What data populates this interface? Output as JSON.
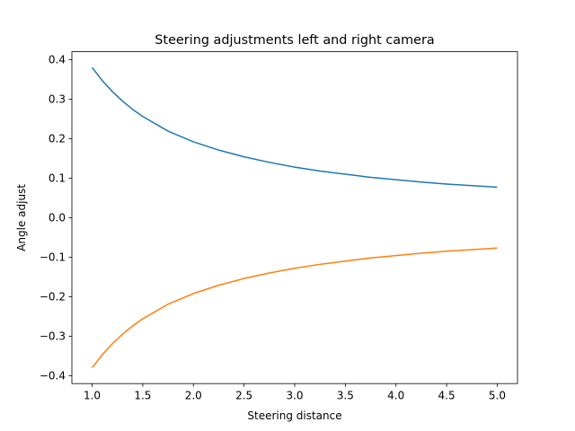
{
  "chart_data": {
    "type": "line",
    "title": "Steering adjustments left and right camera",
    "xlabel": "Steering distance",
    "ylabel": "Angle adjust",
    "xlim": [
      0.8,
      5.2
    ],
    "ylim": [
      -0.42,
      0.42
    ],
    "grid": false,
    "x_ticks": [
      {
        "value": 1.0,
        "label": "1.0"
      },
      {
        "value": 1.5,
        "label": "1.5"
      },
      {
        "value": 2.0,
        "label": "2.0"
      },
      {
        "value": 2.5,
        "label": "2.5"
      },
      {
        "value": 3.0,
        "label": "3.0"
      },
      {
        "value": 3.5,
        "label": "3.5"
      },
      {
        "value": 4.0,
        "label": "4.0"
      },
      {
        "value": 4.5,
        "label": "4.5"
      },
      {
        "value": 5.0,
        "label": "5.0"
      }
    ],
    "y_ticks": [
      {
        "value": 0.4,
        "label": "0.4"
      },
      {
        "value": 0.3,
        "label": "0.3"
      },
      {
        "value": 0.2,
        "label": "0.2"
      },
      {
        "value": 0.1,
        "label": "0.1"
      },
      {
        "value": 0.0,
        "label": "0.0"
      },
      {
        "value": -0.1,
        "label": "−0.1"
      },
      {
        "value": -0.2,
        "label": "−0.2"
      },
      {
        "value": -0.3,
        "label": "−0.3"
      },
      {
        "value": -0.4,
        "label": "−0.4"
      }
    ],
    "x": [
      1.0,
      1.1,
      1.2,
      1.3,
      1.4,
      1.5,
      1.75,
      2.0,
      2.25,
      2.5,
      2.75,
      3.0,
      3.25,
      3.5,
      3.75,
      4.0,
      4.25,
      4.5,
      4.75,
      5.0
    ],
    "series": [
      {
        "color": "#1f77b4",
        "values": [
          0.38,
          0.347,
          0.319,
          0.295,
          0.274,
          0.256,
          0.219,
          0.192,
          0.171,
          0.154,
          0.14,
          0.128,
          0.118,
          0.11,
          0.102,
          0.096,
          0.09,
          0.085,
          0.081,
          0.077
        ]
      },
      {
        "color": "#ff7f0e",
        "values": [
          -0.38,
          -0.347,
          -0.319,
          -0.295,
          -0.274,
          -0.256,
          -0.219,
          -0.192,
          -0.171,
          -0.154,
          -0.14,
          -0.128,
          -0.118,
          -0.11,
          -0.102,
          -0.096,
          -0.09,
          -0.085,
          -0.081,
          -0.077
        ]
      }
    ]
  }
}
